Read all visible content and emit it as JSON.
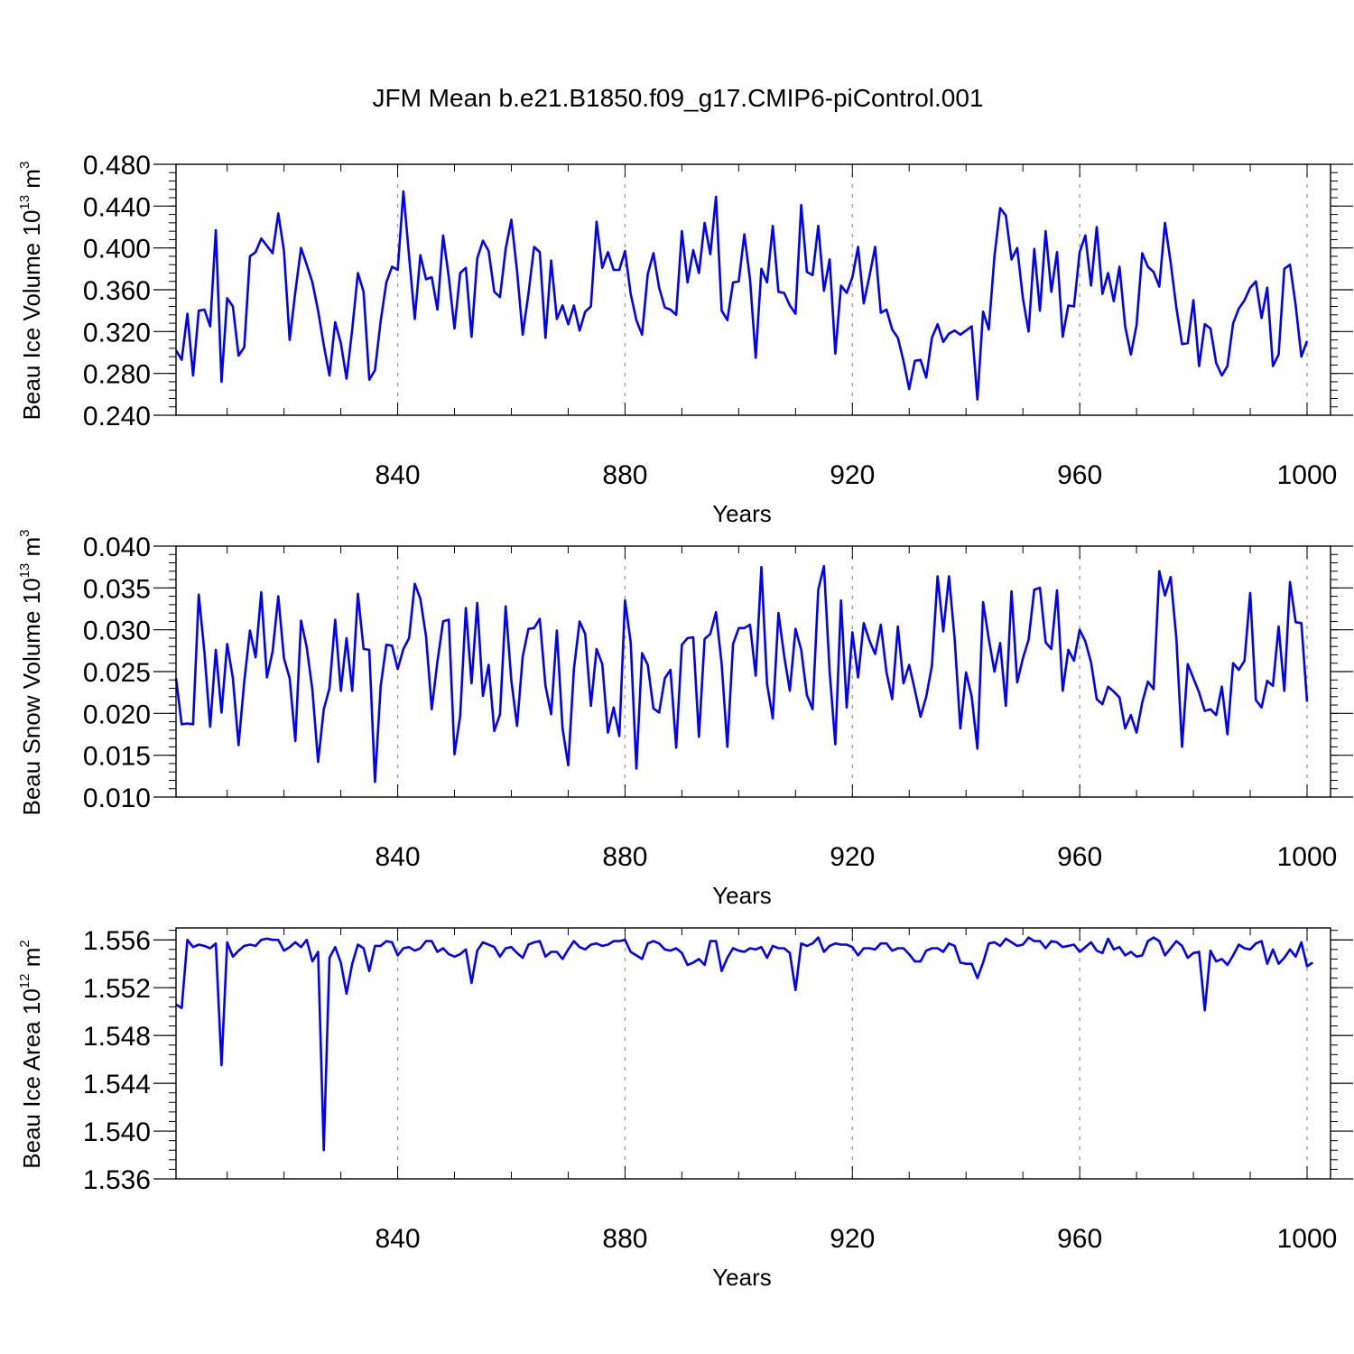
{
  "figure_title": "JFM Mean b.e21.B1850.f09_g17.CMIP6-piControl.001",
  "colors": {
    "line": "#0000ff",
    "axis": "#000000",
    "grid": "#999999"
  },
  "chart_data": [
    {
      "type": "line",
      "title": "JFM Mean b.e21.B1850.f09_g17.CMIP6-piControl.001",
      "xlabel": "Years",
      "ylabel": {
        "text": "Beau Ice Volume 10",
        "exponent": "13",
        "unit": " m",
        "unit_exponent": "3"
      },
      "xlim": [
        801,
        1000
      ],
      "ylim": [
        0.24,
        0.48
      ],
      "x_ticks": [
        "840",
        "880",
        "920",
        "960",
        "1000"
      ],
      "y_ticks": [
        "0.240",
        "0.280",
        "0.320",
        "0.360",
        "0.400",
        "0.440",
        "0.480"
      ],
      "grid": "vertical dashed at major x ticks",
      "x_start": 801,
      "values": [
        0.302,
        0.293,
        0.337,
        0.278,
        0.34,
        0.341,
        0.325,
        0.417,
        0.272,
        0.352,
        0.344,
        0.297,
        0.305,
        0.392,
        0.396,
        0.409,
        0.402,
        0.395,
        0.433,
        0.397,
        0.312,
        0.358,
        0.4,
        0.384,
        0.367,
        0.34,
        0.307,
        0.278,
        0.329,
        0.309,
        0.275,
        0.322,
        0.376,
        0.358,
        0.274,
        0.283,
        0.33,
        0.367,
        0.382,
        0.379,
        0.454,
        0.392,
        0.332,
        0.393,
        0.37,
        0.372,
        0.341,
        0.412,
        0.372,
        0.323,
        0.376,
        0.381,
        0.315,
        0.39,
        0.407,
        0.397,
        0.358,
        0.353,
        0.399,
        0.427,
        0.378,
        0.317,
        0.356,
        0.401,
        0.396,
        0.314,
        0.388,
        0.332,
        0.345,
        0.327,
        0.345,
        0.321,
        0.339,
        0.344,
        0.425,
        0.381,
        0.396,
        0.379,
        0.379,
        0.397,
        0.356,
        0.331,
        0.317,
        0.375,
        0.395,
        0.362,
        0.343,
        0.341,
        0.336,
        0.416,
        0.367,
        0.398,
        0.376,
        0.424,
        0.394,
        0.449,
        0.34,
        0.331,
        0.367,
        0.368,
        0.413,
        0.37,
        0.295,
        0.38,
        0.367,
        0.421,
        0.358,
        0.357,
        0.345,
        0.337,
        0.441,
        0.377,
        0.374,
        0.421,
        0.359,
        0.389,
        0.299,
        0.364,
        0.357,
        0.372,
        0.401,
        0.347,
        0.373,
        0.401,
        0.338,
        0.341,
        0.322,
        0.314,
        0.292,
        0.265,
        0.292,
        0.293,
        0.276,
        0.314,
        0.327,
        0.31,
        0.318,
        0.321,
        0.317,
        0.321,
        0.325,
        0.255,
        0.339,
        0.322,
        0.392,
        0.438,
        0.431,
        0.389,
        0.4,
        0.352,
        0.32,
        0.399,
        0.34,
        0.416,
        0.358,
        0.396,
        0.315,
        0.345,
        0.344,
        0.396,
        0.412,
        0.364,
        0.42,
        0.356,
        0.376,
        0.349,
        0.382,
        0.325,
        0.298,
        0.326,
        0.395,
        0.382,
        0.377,
        0.363,
        0.424,
        0.386,
        0.343,
        0.308,
        0.309,
        0.35,
        0.287,
        0.327,
        0.323,
        0.29,
        0.278,
        0.287,
        0.328,
        0.342,
        0.35,
        0.362,
        0.368,
        0.333,
        0.362,
        0.287,
        0.298,
        0.38,
        0.384,
        0.345,
        0.296,
        0.311
      ]
    },
    {
      "type": "line",
      "title": "",
      "xlabel": "Years",
      "ylabel": {
        "text": "Beau Snow Volume 10",
        "exponent": "13",
        "unit": " m",
        "unit_exponent": "3"
      },
      "xlim": [
        801,
        1000
      ],
      "ylim": [
        0.01,
        0.04
      ],
      "x_ticks": [
        "840",
        "880",
        "920",
        "960",
        "1000"
      ],
      "y_ticks": [
        "0.010",
        "0.015",
        "0.020",
        "0.025",
        "0.030",
        "0.035",
        "0.040"
      ],
      "grid": "vertical dashed at major x ticks",
      "x_start": 801,
      "values": [
        0.0242,
        0.0187,
        0.0188,
        0.0187,
        0.0342,
        0.0273,
        0.0184,
        0.0276,
        0.0201,
        0.0283,
        0.0242,
        0.0162,
        0.0238,
        0.0299,
        0.0267,
        0.0345,
        0.0243,
        0.0274,
        0.034,
        0.0266,
        0.0242,
        0.0167,
        0.0311,
        0.0279,
        0.0228,
        0.0142,
        0.0205,
        0.023,
        0.0312,
        0.0227,
        0.029,
        0.0227,
        0.0343,
        0.0277,
        0.0276,
        0.0118,
        0.0232,
        0.0282,
        0.0281,
        0.0253,
        0.0277,
        0.029,
        0.0355,
        0.0337,
        0.0292,
        0.0205,
        0.0262,
        0.031,
        0.0312,
        0.0151,
        0.0197,
        0.0326,
        0.0236,
        0.0332,
        0.0221,
        0.0258,
        0.0179,
        0.0199,
        0.0328,
        0.0239,
        0.0185,
        0.0268,
        0.0301,
        0.0302,
        0.0313,
        0.0233,
        0.0199,
        0.0299,
        0.0182,
        0.0138,
        0.0253,
        0.031,
        0.0295,
        0.0209,
        0.0277,
        0.0259,
        0.0177,
        0.0207,
        0.0173,
        0.0335,
        0.0285,
        0.0134,
        0.0272,
        0.0258,
        0.0206,
        0.0201,
        0.0242,
        0.0252,
        0.0159,
        0.0282,
        0.029,
        0.0291,
        0.0172,
        0.0289,
        0.0295,
        0.0321,
        0.0259,
        0.016,
        0.0283,
        0.0302,
        0.0302,
        0.0306,
        0.0245,
        0.0375,
        0.0235,
        0.0194,
        0.032,
        0.0269,
        0.0227,
        0.0301,
        0.0276,
        0.0222,
        0.0205,
        0.0348,
        0.0376,
        0.025,
        0.0163,
        0.0335,
        0.0207,
        0.0297,
        0.0243,
        0.0308,
        0.0287,
        0.0271,
        0.0306,
        0.0249,
        0.0217,
        0.0304,
        0.0236,
        0.0258,
        0.0228,
        0.0196,
        0.022,
        0.0257,
        0.0364,
        0.0298,
        0.0364,
        0.0289,
        0.0182,
        0.0249,
        0.022,
        0.0158,
        0.0333,
        0.0289,
        0.025,
        0.0284,
        0.0209,
        0.0346,
        0.0237,
        0.0266,
        0.0288,
        0.0348,
        0.035,
        0.0285,
        0.0277,
        0.0347,
        0.0227,
        0.0276,
        0.0263,
        0.03,
        0.0286,
        0.0261,
        0.0217,
        0.0211,
        0.0232,
        0.0226,
        0.0219,
        0.0182,
        0.0198,
        0.0177,
        0.0213,
        0.0238,
        0.0229,
        0.037,
        0.0341,
        0.0363,
        0.029,
        0.016,
        0.0259,
        0.0242,
        0.0225,
        0.0203,
        0.0205,
        0.0198,
        0.0232,
        0.0175,
        0.026,
        0.0252,
        0.0263,
        0.0344,
        0.0216,
        0.0207,
        0.0239,
        0.0233,
        0.0304,
        0.0227,
        0.0357,
        0.0309,
        0.0308,
        0.0214
      ]
    },
    {
      "type": "line",
      "title": "",
      "xlabel": "Years",
      "ylabel": {
        "text": "Beau Ice Area 10",
        "exponent": "12",
        "unit": " m",
        "unit_exponent": "2"
      },
      "xlim": [
        801,
        1000
      ],
      "ylim": [
        1.536,
        1.557
      ],
      "x_ticks": [
        "840",
        "880",
        "920",
        "960",
        "1000"
      ],
      "y_ticks": [
        "1.536",
        "1.540",
        "1.544",
        "1.548",
        "1.552",
        "1.556"
      ],
      "grid": "vertical dashed at major x ticks",
      "x_start": 801,
      "values": [
        1.5506,
        1.5503,
        1.556,
        1.5554,
        1.5556,
        1.5555,
        1.5553,
        1.5557,
        1.5455,
        1.5558,
        1.5546,
        1.5551,
        1.5555,
        1.5556,
        1.5555,
        1.556,
        1.5561,
        1.556,
        1.556,
        1.5551,
        1.5554,
        1.5558,
        1.5554,
        1.556,
        1.5542,
        1.555,
        1.5384,
        1.5545,
        1.5554,
        1.5541,
        1.5515,
        1.554,
        1.5556,
        1.5553,
        1.5534,
        1.5555,
        1.5555,
        1.5559,
        1.5558,
        1.5547,
        1.5553,
        1.5554,
        1.5551,
        1.5553,
        1.5559,
        1.5559,
        1.555,
        1.5553,
        1.5548,
        1.5546,
        1.5548,
        1.5552,
        1.5524,
        1.5551,
        1.5558,
        1.5556,
        1.5554,
        1.5546,
        1.5553,
        1.5554,
        1.5549,
        1.5545,
        1.5556,
        1.5558,
        1.5559,
        1.5546,
        1.555,
        1.555,
        1.5544,
        1.5552,
        1.5559,
        1.5554,
        1.5552,
        1.5556,
        1.5557,
        1.5555,
        1.5556,
        1.5559,
        1.5559,
        1.556,
        1.555,
        1.5547,
        1.5544,
        1.5557,
        1.5559,
        1.5557,
        1.5552,
        1.5551,
        1.5553,
        1.5549,
        1.5539,
        1.5541,
        1.5544,
        1.5539,
        1.5559,
        1.5559,
        1.5534,
        1.5545,
        1.5553,
        1.5551,
        1.555,
        1.5553,
        1.5552,
        1.5554,
        1.5545,
        1.5555,
        1.5553,
        1.5553,
        1.5549,
        1.5518,
        1.5557,
        1.5555,
        1.5557,
        1.5562,
        1.555,
        1.5555,
        1.5557,
        1.5556,
        1.5556,
        1.5554,
        1.5547,
        1.5553,
        1.5553,
        1.5552,
        1.5557,
        1.5557,
        1.5551,
        1.5553,
        1.5553,
        1.5548,
        1.5542,
        1.5542,
        1.5551,
        1.5553,
        1.5553,
        1.555,
        1.5557,
        1.5555,
        1.5541,
        1.554,
        1.554,
        1.5528,
        1.5541,
        1.5557,
        1.5558,
        1.5555,
        1.5561,
        1.5558,
        1.5555,
        1.5556,
        1.5562,
        1.5559,
        1.5559,
        1.5553,
        1.5559,
        1.5558,
        1.5554,
        1.5555,
        1.5556,
        1.555,
        1.5554,
        1.5558,
        1.5551,
        1.5549,
        1.5561,
        1.5552,
        1.5554,
        1.5547,
        1.555,
        1.5546,
        1.5547,
        1.5559,
        1.5562,
        1.5559,
        1.5547,
        1.5553,
        1.5559,
        1.5555,
        1.5545,
        1.5549,
        1.555,
        1.5501,
        1.5551,
        1.5542,
        1.5544,
        1.5539,
        1.5547,
        1.5556,
        1.5553,
        1.5552,
        1.5557,
        1.5559,
        1.554,
        1.5552,
        1.554,
        1.5545,
        1.5552,
        1.5546,
        1.5558,
        1.5538,
        1.5541
      ]
    }
  ]
}
